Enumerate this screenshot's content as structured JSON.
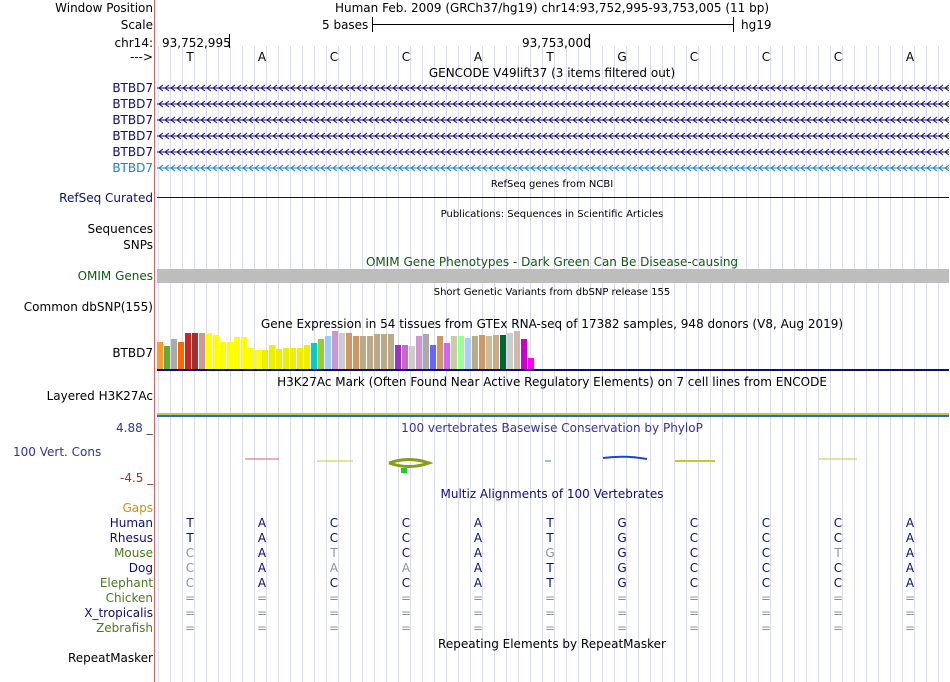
{
  "header": {
    "window_position_label": "Window Position",
    "window_position_text": "Human Feb. 2009 (GRCh37/hg19)   chr14:93,752,995-93,753,005 (11 bp)",
    "scale_label": "Scale",
    "scale_text": "5 bases",
    "assembly": "hg19",
    "chrom_label": "chr14:",
    "pos_left": "93,752,995",
    "pos_mid": "93,753,000",
    "strand_label": "--->",
    "bases": [
      "T",
      "A",
      "C",
      "C",
      "A",
      "T",
      "G",
      "C",
      "C",
      "C",
      "A"
    ]
  },
  "tracks": {
    "gencode": {
      "title": "GENCODE V49lift37 (3 items filtered out)",
      "genes": [
        "BTBD7",
        "BTBD7",
        "BTBD7",
        "BTBD7",
        "BTBD7",
        "BTBD7"
      ],
      "colors": [
        "#0c0c78",
        "#0c0c78",
        "#0c0c78",
        "#0c0c78",
        "#0c0c78",
        "#1e82c8"
      ]
    },
    "refseq": {
      "title": "RefSeq genes from NCBI",
      "label": "RefSeq Curated"
    },
    "publications": {
      "title": "Publications: Sequences in Scientific Articles",
      "label_sequences": "Sequences",
      "label_snps": "SNPs"
    },
    "omim": {
      "title": "OMIM Gene Phenotypes - Dark Green Can Be Disease-causing",
      "label": "OMIM Genes"
    },
    "dbsnp": {
      "title": "Short Genetic Variants from dbSNP release 155",
      "label": "Common dbSNP(155)"
    },
    "gtex": {
      "title": "Gene Expression in 54 tissues from GTEx RNA-seq of 17382 samples, 948 donors (V8, Aug 2019)",
      "gene": "BTBD7",
      "bar_values": [
        0.72,
        0.6,
        0.78,
        0.72,
        0.95,
        0.95,
        0.95,
        0.95,
        0.9,
        0.72,
        0.72,
        0.85,
        0.85,
        0.55,
        0.5,
        0.5,
        0.62,
        0.52,
        0.55,
        0.55,
        0.55,
        0.62,
        0.68,
        0.78,
        0.88,
        1.0,
        0.95,
        0.95,
        0.88,
        0.88,
        0.88,
        0.92,
        0.92,
        0.92,
        0.62,
        0.62,
        0.6,
        0.88,
        0.92,
        0.62,
        0.88,
        0.68,
        0.88,
        0.88,
        0.82,
        0.88,
        0.9,
        0.88,
        0.9,
        0.9,
        0.95,
        1.0,
        0.8,
        0.3
      ],
      "bar_colors": [
        "#ff9933",
        "#66aa33",
        "#aaaaaa",
        "#ff6600",
        "#cc2222",
        "#993333",
        "#cc9999",
        "#ffff00",
        "#ffff00",
        "#ffff00",
        "#ffff00",
        "#ffff00",
        "#ffff00",
        "#ffff00",
        "#ffff00",
        "#eeee00",
        "#eeee00",
        "#eeee00",
        "#eeee00",
        "#eeee00",
        "#eeee00",
        "#eeee00",
        "#00cccc",
        "#99cc33",
        "#99ccff",
        "#cc99cc",
        "#cccccc",
        "#cc9966",
        "#cc9966",
        "#bbaa88",
        "#bbaa88",
        "#bbaa88",
        "#bbaa88",
        "#bbaa88",
        "#9933cc",
        "#cc66cc",
        "#cccccc",
        "#cc99cc",
        "#aaaaaa",
        "#6666ff",
        "#cc9966",
        "#cc66ff",
        "#ccccaa",
        "#99ff99",
        "#aaccff",
        "#bbaa88",
        "#cc9966",
        "#ccbb99",
        "#ccaa88",
        "#006633",
        "#cccccc",
        "#ccbbaa",
        "#cc00cc",
        "#ff00ff"
      ]
    },
    "h3k27ac": {
      "title": "H3K27Ac Mark (Often Found Near Active Regulatory Elements) on 7 cell lines from ENCODE",
      "label": "Layered H3K27Ac"
    },
    "phylop": {
      "title": "100 vertebrates Basewise Conservation by PhyloP",
      "label": "100 Vert. Cons",
      "max": "4.88 _",
      "min": "-4.5 _"
    },
    "multiz": {
      "title": "Multiz Alignments of 100 Vertebrates",
      "gaps_label": "Gaps",
      "species": [
        {
          "name": "Human",
          "color": "#0c0c78",
          "bases": [
            "T",
            "A",
            "C",
            "C",
            "A",
            "T",
            "G",
            "C",
            "C",
            "C",
            "A"
          ]
        },
        {
          "name": "Rhesus",
          "color": "#0c0c78",
          "bases": [
            "T",
            "A",
            "C",
            "C",
            "A",
            "T",
            "G",
            "C",
            "C",
            "C",
            "A"
          ]
        },
        {
          "name": "Mouse",
          "color": "#4a7a1e",
          "bases": [
            "C",
            "A",
            "T",
            "C",
            "A",
            "G",
            "G",
            "C",
            "C",
            "T",
            "A"
          ]
        },
        {
          "name": "Dog",
          "color": "#0c0c78",
          "bases": [
            "C",
            "A",
            "A",
            "A",
            "A",
            "T",
            "G",
            "C",
            "C",
            "C",
            "A"
          ]
        },
        {
          "name": "Elephant",
          "color": "#4a7a1e",
          "bases": [
            "C",
            "A",
            "C",
            "C",
            "A",
            "T",
            "G",
            "C",
            "C",
            "C",
            "A"
          ]
        },
        {
          "name": "Chicken",
          "color": "#4a7a1e",
          "bases": [
            "=",
            "=",
            "=",
            "=",
            "=",
            "=",
            "=",
            "=",
            "=",
            "=",
            "="
          ]
        },
        {
          "name": "X_tropicalis",
          "color": "#0c0c78",
          "bases": [
            "=",
            "=",
            "=",
            "=",
            "=",
            "=",
            "=",
            "=",
            "=",
            "=",
            "="
          ]
        },
        {
          "name": "Zebrafish",
          "color": "#4a7a1e",
          "bases": [
            "=",
            "=",
            "=",
            "=",
            "=",
            "=",
            "=",
            "=",
            "=",
            "=",
            "="
          ]
        }
      ],
      "mismatch": [
        [
          false,
          false,
          false,
          false,
          false,
          false,
          false,
          false,
          false,
          false,
          false
        ],
        [
          false,
          false,
          false,
          false,
          false,
          false,
          false,
          false,
          false,
          false,
          false
        ],
        [
          true,
          false,
          true,
          false,
          false,
          true,
          false,
          false,
          false,
          true,
          false
        ],
        [
          true,
          false,
          true,
          true,
          false,
          false,
          false,
          false,
          false,
          false,
          false
        ],
        [
          true,
          false,
          false,
          false,
          false,
          false,
          false,
          false,
          false,
          false,
          false
        ],
        [
          true,
          true,
          true,
          true,
          true,
          true,
          true,
          true,
          true,
          true,
          true
        ],
        [
          true,
          true,
          true,
          true,
          true,
          true,
          true,
          true,
          true,
          true,
          true
        ],
        [
          true,
          true,
          true,
          true,
          true,
          true,
          true,
          true,
          true,
          true,
          true
        ]
      ]
    },
    "repeatmasker": {
      "title": "Repeating Elements by RepeatMasker",
      "label": "RepeatMasker"
    }
  }
}
